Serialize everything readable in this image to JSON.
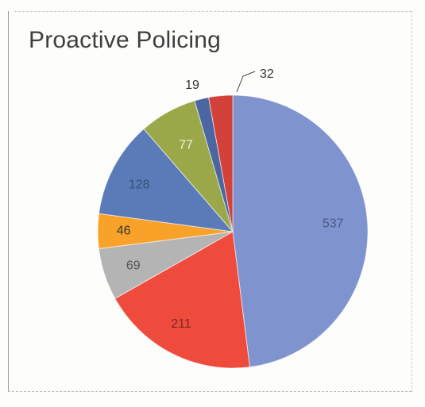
{
  "chart_data": {
    "type": "pie",
    "title": "Proactive Policing",
    "slices": [
      {
        "value": 537,
        "label": "537",
        "color": "#7f93cf"
      },
      {
        "value": 211,
        "label": "211",
        "color": "#ee4b3c"
      },
      {
        "value": 69,
        "label": "69",
        "color": "#b4b4b4"
      },
      {
        "value": 46,
        "label": "46",
        "color": "#f9a22a"
      },
      {
        "value": 128,
        "label": "128",
        "color": "#5a7bb8"
      },
      {
        "value": 77,
        "label": "77",
        "color": "#9aa84a"
      },
      {
        "value": 19,
        "label": "19",
        "color": "#4b66a0"
      },
      {
        "value": 32,
        "label": "32",
        "color": "#d2413a"
      }
    ],
    "legend": false
  }
}
